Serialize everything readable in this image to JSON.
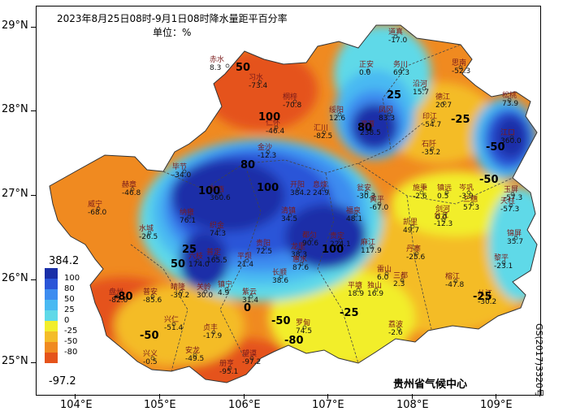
{
  "title": "2023年8月25日08时-9月1日08时降水量距平百分率",
  "unit": "单位：%",
  "credit": "贵州省气候中心",
  "map_number": "GS(2017)3320号",
  "lat_labels": [
    "29°N",
    "28°N",
    "27°N",
    "26°N",
    "25°N"
  ],
  "lon_labels": [
    "104°E",
    "105°E",
    "106°E",
    "107°E",
    "108°E",
    "109°E"
  ],
  "legend": {
    "max": "384.2",
    "min": "-97.2",
    "levels": [
      "100",
      "80",
      "50",
      "25",
      "0",
      "-25",
      "-50",
      "-80"
    ],
    "colors": [
      "#1a2fa8",
      "#2a55d8",
      "#3d8cf0",
      "#49b9f2",
      "#5fd9e8",
      "#f2ee2c",
      "#f4bc28",
      "#f08a20",
      "#e5531a"
    ]
  },
  "contour_labels": [
    "100",
    "80",
    "50",
    "25",
    "0",
    "-25",
    "-50",
    "-80"
  ],
  "stations": [
    {
      "name": "道真",
      "value": "-17.0"
    },
    {
      "name": "正安",
      "value": "0.0"
    },
    {
      "name": "务川",
      "value": "69.3"
    },
    {
      "name": "沿河",
      "value": "15.7"
    },
    {
      "name": "赤水",
      "value": "8.3"
    },
    {
      "name": "习水",
      "value": "-73.4"
    },
    {
      "name": "桐梓",
      "value": "-70.8"
    },
    {
      "name": "绥阳",
      "value": "12.6"
    },
    {
      "name": "凤冈",
      "value": "83.3"
    },
    {
      "name": "德江",
      "value": "20.7"
    },
    {
      "name": "印江",
      "value": "-54.7"
    },
    {
      "name": "思南",
      "value": "-52.3"
    },
    {
      "name": "松桃",
      "value": "73.9"
    },
    {
      "name": "仁怀",
      "value": "-46.4"
    },
    {
      "name": "汇川",
      "value": "-82.5"
    },
    {
      "name": "湄潭",
      "value": "238.5"
    },
    {
      "name": "石阡",
      "value": "-35.2"
    },
    {
      "name": "江口",
      "value": "360.0"
    },
    {
      "name": "金沙",
      "value": "-12.3"
    },
    {
      "name": "毕节",
      "value": "-34.0"
    },
    {
      "name": "赫章",
      "value": "-46.8"
    },
    {
      "name": "威宁",
      "value": "-68.0"
    },
    {
      "name": "黔西",
      "value": "360.6"
    },
    {
      "name": "开阳",
      "value": "384.2"
    },
    {
      "name": "息烽",
      "value": "24.9"
    },
    {
      "name": "瓮安",
      "value": "-30.3"
    },
    {
      "name": "施秉",
      "value": "-2.6"
    },
    {
      "name": "镇远",
      "value": "0.5"
    },
    {
      "name": "岑巩",
      "value": "-3.9"
    },
    {
      "name": "玉屏",
      "value": "-57.3"
    },
    {
      "name": "纳雍",
      "value": "76.1"
    },
    {
      "name": "水城",
      "value": "-26.5"
    },
    {
      "name": "黄平",
      "value": "-67.0"
    },
    {
      "name": "台江",
      "value": "-12.3"
    },
    {
      "name": "三穗",
      "value": "57.3"
    },
    {
      "name": "天柱",
      "value": "-57.3"
    },
    {
      "name": "织金",
      "value": "74.3"
    },
    {
      "name": "清镇",
      "value": "34.5"
    },
    {
      "name": "福泉",
      "value": "48.1"
    },
    {
      "name": "凯里",
      "value": "49.7"
    },
    {
      "name": "剑河",
      "value": "0.0"
    },
    {
      "name": "锦屏",
      "value": "35.7"
    },
    {
      "name": "六枝",
      "value": "174.0"
    },
    {
      "name": "普定",
      "value": "165.5"
    },
    {
      "name": "平坝",
      "value": "21.4"
    },
    {
      "name": "贵阳",
      "value": "72.5"
    },
    {
      "name": "龙里",
      "value": "38.3"
    },
    {
      "name": "贵定",
      "value": "224.1"
    },
    {
      "name": "麻江",
      "value": "117.9"
    },
    {
      "name": "丹寨",
      "value": "-25.6"
    },
    {
      "name": "黎平",
      "value": "-23.1"
    },
    {
      "name": "盘州",
      "value": "-82.6"
    },
    {
      "name": "普安",
      "value": "-85.6"
    },
    {
      "name": "晴隆",
      "value": "-39.2"
    },
    {
      "name": "关岭",
      "value": "30.0"
    },
    {
      "name": "镇宁",
      "value": "4.9"
    },
    {
      "name": "惠水",
      "value": "87.6"
    },
    {
      "name": "都匀",
      "value": "90.6"
    },
    {
      "name": "雷山",
      "value": "6.0"
    },
    {
      "name": "长顺",
      "value": "38.6"
    },
    {
      "name": "紫云",
      "value": "31.4"
    },
    {
      "name": "平塘",
      "value": "18.9"
    },
    {
      "name": "独山",
      "value": "16.9"
    },
    {
      "name": "三都",
      "value": "2.3"
    },
    {
      "name": "榕江",
      "value": "-47.8"
    },
    {
      "name": "从江",
      "value": "-30.2"
    },
    {
      "name": "兴仁",
      "value": "-51.4"
    },
    {
      "name": "贞丰",
      "value": "-17.9"
    },
    {
      "name": "望谟",
      "value": "-97.2"
    },
    {
      "name": "罗甸",
      "value": "74.5"
    },
    {
      "name": "荔波",
      "value": "-2.6"
    },
    {
      "name": "兴义",
      "value": "-0.5"
    },
    {
      "name": "安龙",
      "value": "-49.5"
    },
    {
      "name": "册亨",
      "value": "-95.1"
    }
  ]
}
